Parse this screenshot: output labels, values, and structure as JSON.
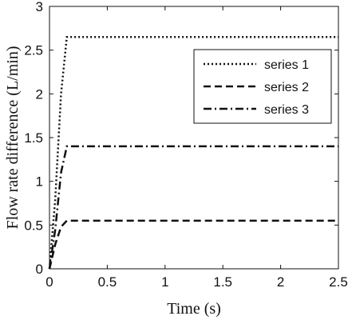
{
  "chart_data": {
    "type": "line",
    "title": "",
    "xlabel": "Time (s)",
    "ylabel": "Flow rate difference (L/min)",
    "xlim": [
      0,
      2.5
    ],
    "ylim": [
      0,
      3
    ],
    "xticks": [
      0,
      0.5,
      1,
      1.5,
      2,
      2.5
    ],
    "xtick_labels": [
      "0",
      "0.5",
      "1",
      "1.5",
      "2",
      "2.5"
    ],
    "yticks": [
      0,
      0.5,
      1,
      1.5,
      2,
      2.5,
      3
    ],
    "ytick_labels": [
      "0",
      "0.5",
      "1",
      "1.5",
      "2",
      "2.5",
      "3"
    ],
    "grid": false,
    "legend_position": "top-right",
    "series": [
      {
        "name": "series 1",
        "line_style": "dotted",
        "color": "#111111",
        "x": [
          0,
          0.05,
          0.1,
          0.15,
          2.5
        ],
        "y": [
          0,
          0.8,
          2.0,
          2.65,
          2.65
        ]
      },
      {
        "name": "series 2",
        "line_style": "dashed",
        "color": "#111111",
        "x": [
          0,
          0.05,
          0.1,
          0.15,
          2.5
        ],
        "y": [
          0,
          0.28,
          0.48,
          0.55,
          0.55
        ]
      },
      {
        "name": "series 3",
        "line_style": "dashdot",
        "color": "#111111",
        "x": [
          0,
          0.05,
          0.1,
          0.15,
          2.5
        ],
        "y": [
          0,
          0.45,
          1.1,
          1.4,
          1.4
        ]
      }
    ]
  }
}
